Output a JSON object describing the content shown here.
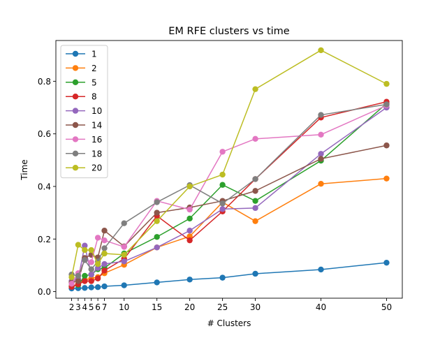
{
  "chart_data": {
    "type": "line",
    "title": "EM RFE clusters vs time",
    "xlabel": "# Clusters",
    "ylabel": "Time",
    "xlim": [
      -0.4,
      52.4
    ],
    "ylim": [
      -0.025,
      0.955
    ],
    "x": [
      2,
      3,
      4,
      5,
      6,
      7,
      10,
      15,
      20,
      25,
      30,
      40,
      50
    ],
    "x_ticks": [
      2,
      3,
      4,
      5,
      6,
      7,
      10,
      15,
      20,
      25,
      30,
      40,
      50
    ],
    "x_tick_labels": [
      "2",
      "3",
      "4",
      "5",
      "6",
      "7",
      "10",
      "15",
      "20",
      "25",
      "30",
      "40",
      "50"
    ],
    "y_ticks": [
      0.0,
      0.2,
      0.4,
      0.6,
      0.8
    ],
    "y_tick_labels": [
      "0.0",
      "0.2",
      "0.4",
      "0.6",
      "0.8"
    ],
    "grid": false,
    "legend_position": "upper-left",
    "series": [
      {
        "name": "1",
        "color": "#1f77b4",
        "values": [
          0.012,
          0.013,
          0.014,
          0.016,
          0.017,
          0.02,
          0.024,
          0.035,
          0.046,
          0.053,
          0.068,
          0.084,
          0.11
        ]
      },
      {
        "name": "2",
        "color": "#ff7f0e",
        "values": [
          0.02,
          0.03,
          0.045,
          0.05,
          0.055,
          0.07,
          0.102,
          0.168,
          0.21,
          0.34,
          0.268,
          0.41,
          0.43
        ]
      },
      {
        "name": "5",
        "color": "#2ca02c",
        "values": [
          0.02,
          0.025,
          0.06,
          0.065,
          0.085,
          0.09,
          0.145,
          0.208,
          0.278,
          0.406,
          0.345,
          0.498,
          0.715
        ]
      },
      {
        "name": "8",
        "color": "#d62728",
        "values": [
          0.018,
          0.028,
          0.04,
          0.04,
          0.05,
          0.08,
          0.125,
          0.288,
          0.195,
          0.305,
          0.428,
          0.662,
          0.722
        ]
      },
      {
        "name": "10",
        "color": "#9467bd",
        "values": [
          0.04,
          0.048,
          0.175,
          0.065,
          0.09,
          0.105,
          0.115,
          0.168,
          0.232,
          0.314,
          0.318,
          0.524,
          0.7
        ]
      },
      {
        "name": "14",
        "color": "#8c564b",
        "values": [
          0.035,
          0.04,
          0.128,
          0.14,
          0.13,
          0.232,
          0.172,
          0.3,
          0.32,
          0.345,
          0.383,
          0.505,
          0.556
        ]
      },
      {
        "name": "16",
        "color": "#e377c2",
        "values": [
          0.03,
          0.07,
          0.12,
          0.112,
          0.205,
          0.195,
          0.17,
          0.345,
          0.312,
          0.532,
          0.581,
          0.597,
          0.708
        ]
      },
      {
        "name": "18",
        "color": "#7f7f7f",
        "values": [
          0.065,
          0.06,
          0.12,
          0.085,
          0.115,
          0.165,
          0.26,
          0.34,
          0.405,
          0.335,
          0.428,
          0.672,
          0.712
        ]
      },
      {
        "name": "20",
        "color": "#bcbd22",
        "values": [
          0.055,
          0.178,
          0.158,
          0.158,
          0.105,
          0.145,
          0.14,
          0.268,
          0.4,
          0.445,
          0.77,
          0.918,
          0.79
        ]
      }
    ]
  }
}
